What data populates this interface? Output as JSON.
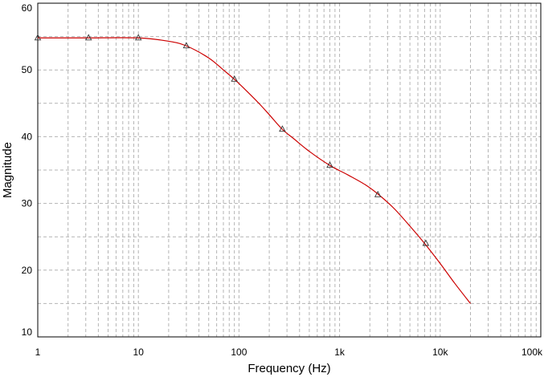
{
  "chart_data": {
    "type": "line",
    "xlabel": "Frequency (Hz)",
    "ylabel": "Magnitude",
    "xscale": "log",
    "xlim": [
      1,
      100000
    ],
    "ylim": [
      10,
      60
    ],
    "grid": true,
    "colors": {
      "line": "#cc0000",
      "marker": "#333333",
      "grid": "#b4b4b4",
      "frame": "#000000"
    },
    "xticks": [
      {
        "value": 1,
        "label": "1"
      },
      {
        "value": 10,
        "label": "10"
      },
      {
        "value": 100,
        "label": "100"
      },
      {
        "value": 1000,
        "label": "1k"
      },
      {
        "value": 10000,
        "label": "10k"
      },
      {
        "value": 100000,
        "label": "100k"
      }
    ],
    "yticks": [
      {
        "value": 10,
        "label": "10"
      },
      {
        "value": 20,
        "label": "20"
      },
      {
        "value": 30,
        "label": "30"
      },
      {
        "value": 40,
        "label": "40"
      },
      {
        "value": 50,
        "label": "50"
      },
      {
        "value": 60,
        "label": "60"
      }
    ],
    "series": [
      {
        "x": [
          1,
          3,
          10,
          20,
          30,
          50,
          70,
          90,
          120,
          160,
          200,
          270,
          350,
          500,
          800,
          1200,
          1800,
          2500,
          3500,
          5000,
          7000,
          10000,
          14000,
          20000
        ],
        "y": [
          54.8,
          54.8,
          54.8,
          54.3,
          53.6,
          51.8,
          50.0,
          48.6,
          46.8,
          44.9,
          43.3,
          41.1,
          39.7,
          37.8,
          35.7,
          34.3,
          32.8,
          31.2,
          29.2,
          26.6,
          24.0,
          21.0,
          18.0,
          15.0
        ],
        "markers": {
          "x": [
            1,
            3.2,
            10,
            30,
            90,
            270,
            800,
            2400,
            7200
          ],
          "y": [
            54.8,
            54.8,
            54.8,
            53.6,
            48.6,
            41.1,
            35.7,
            31.3,
            24.0
          ]
        }
      }
    ]
  }
}
